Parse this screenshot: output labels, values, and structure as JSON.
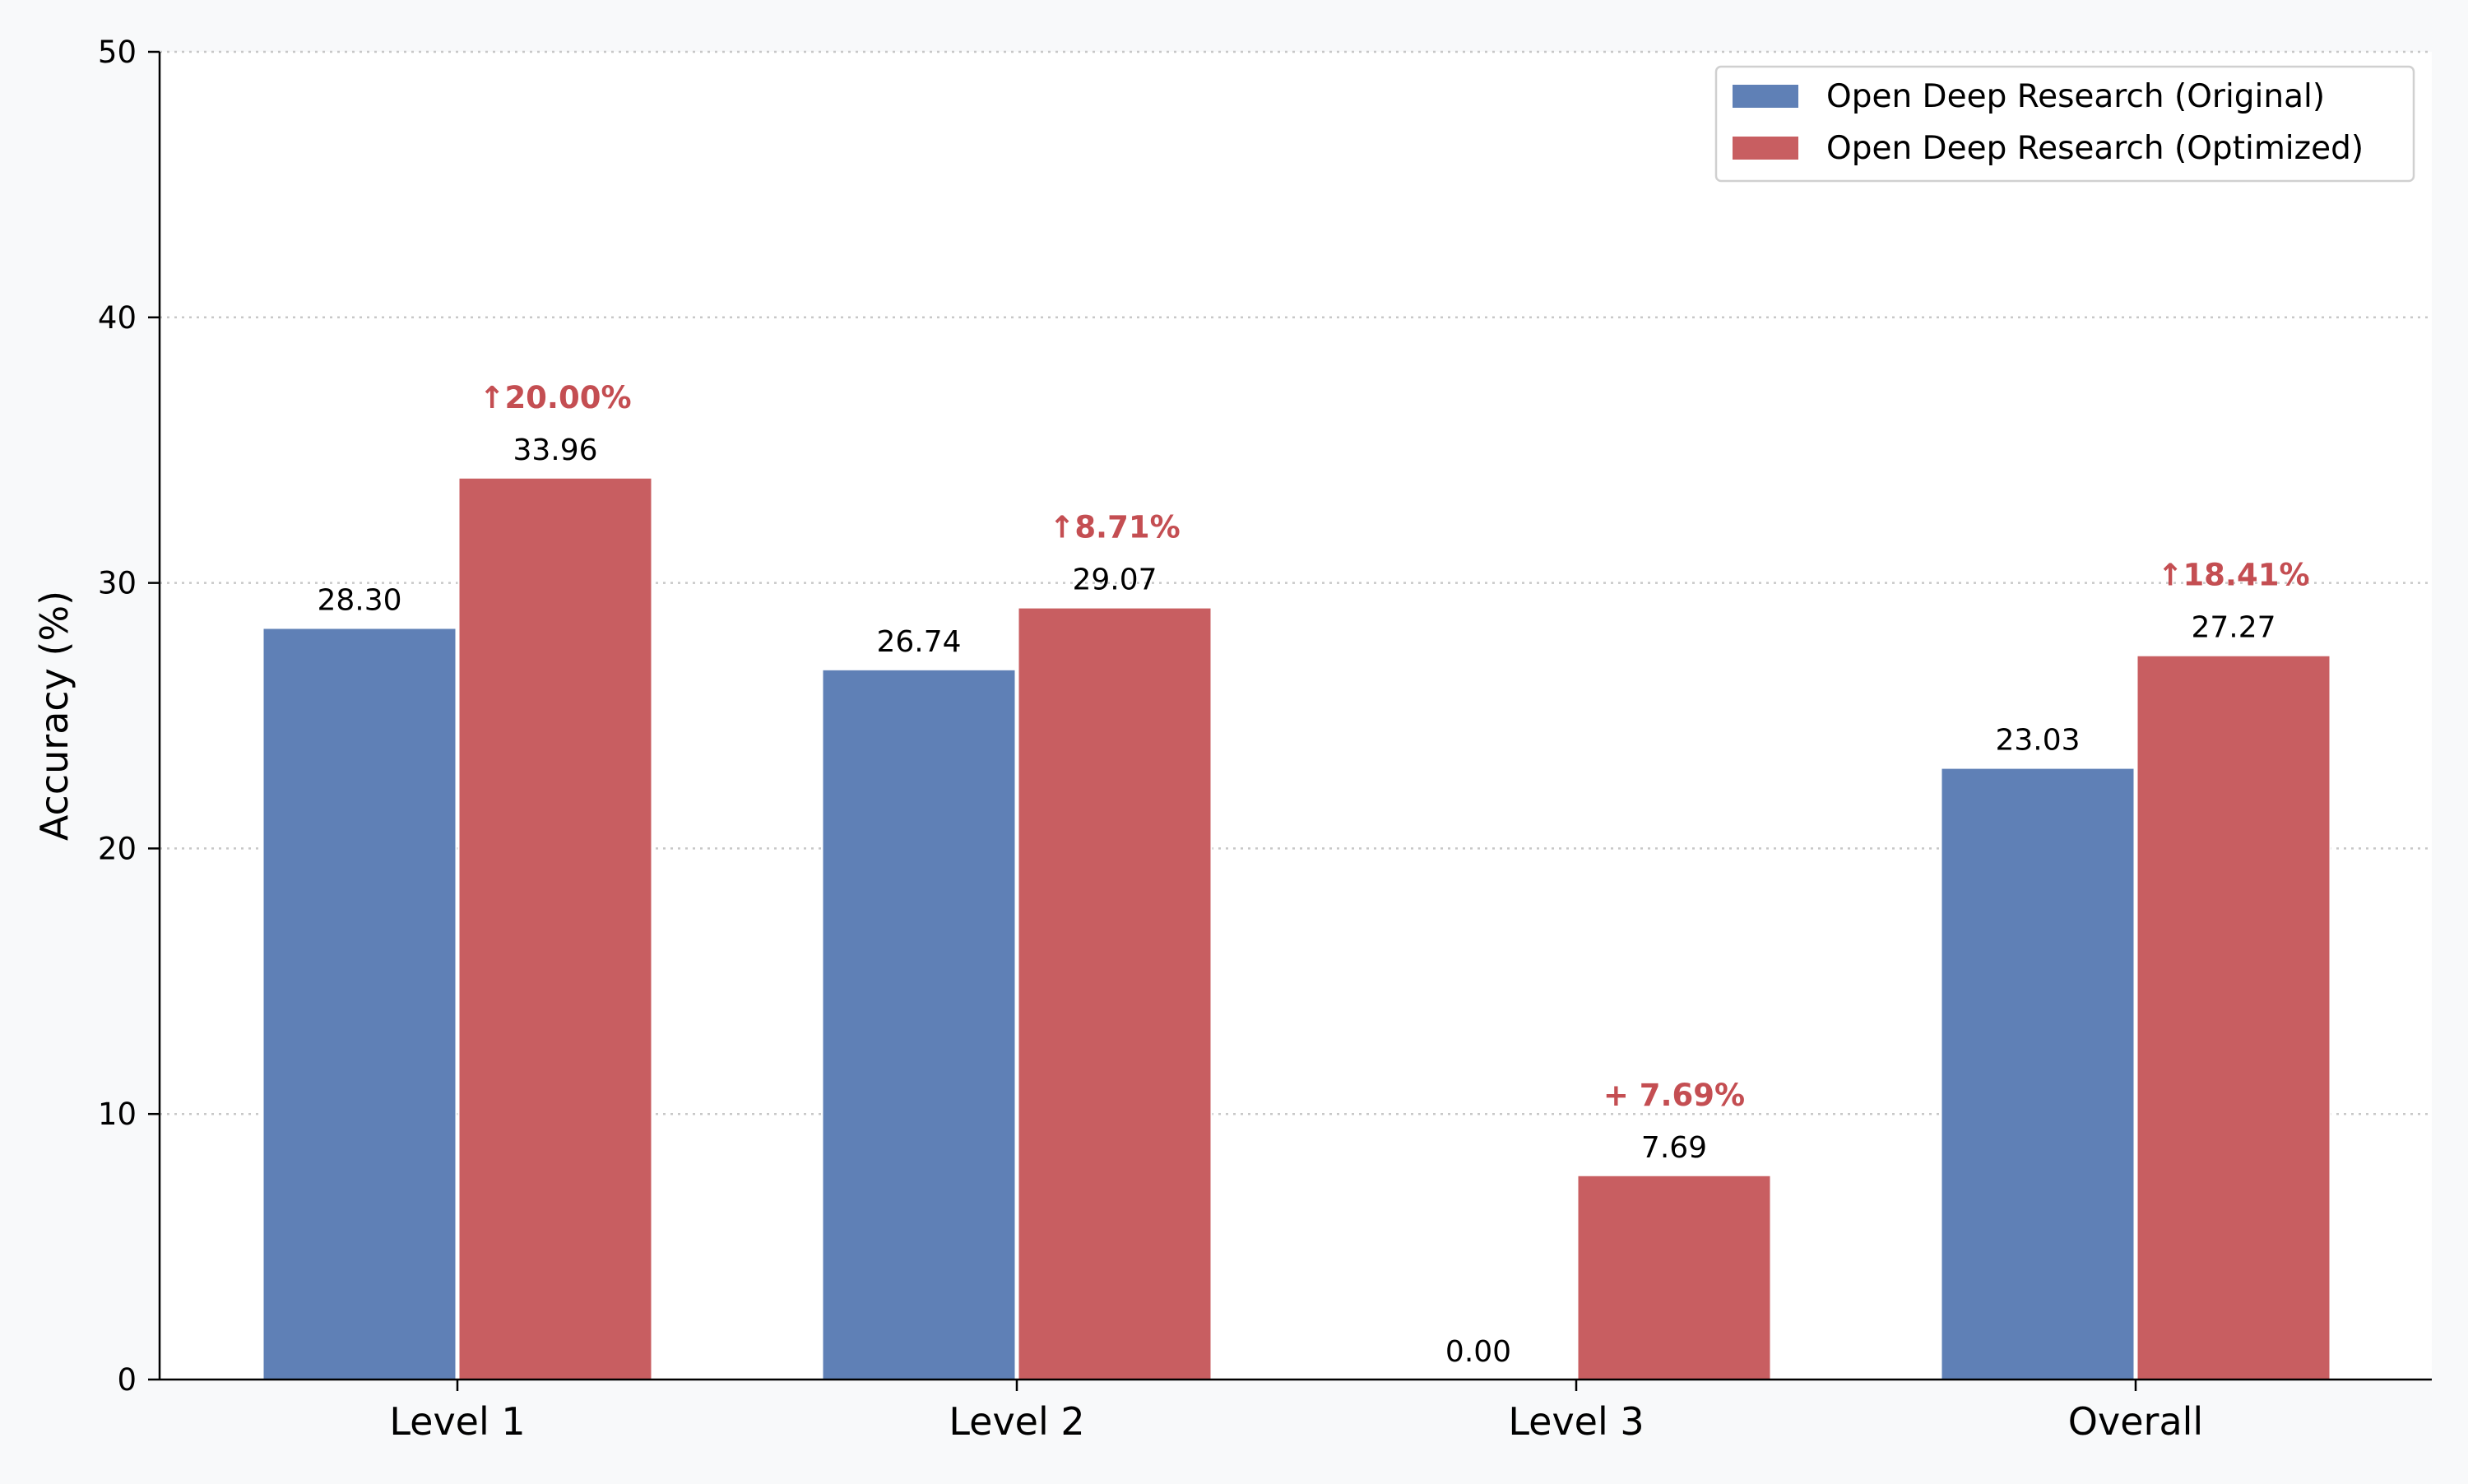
{
  "chart_data": {
    "type": "bar",
    "title": "",
    "xlabel": "",
    "ylabel": "Accuracy (%)",
    "ylim": [
      0,
      50
    ],
    "yticks": [
      0,
      10,
      20,
      30,
      40,
      50
    ],
    "grid": "y-dotted",
    "legend_position": "top-right",
    "categories": [
      "Level 1",
      "Level 2",
      "Level 3",
      "Overall"
    ],
    "series": [
      {
        "name": "Open Deep Research (Original)",
        "color": "#5f80b6",
        "values": [
          28.3,
          26.74,
          0.0,
          23.03
        ],
        "labels": [
          "28.30",
          "26.74",
          "0.00",
          "23.03"
        ]
      },
      {
        "name": "Open Deep Research (Optimized)",
        "color": "#c85e61",
        "values": [
          33.96,
          29.07,
          7.69,
          27.27
        ],
        "labels": [
          "33.96",
          "29.07",
          "7.69",
          "27.27"
        ]
      }
    ],
    "annotations": {
      "color": "#c44e52",
      "labels": [
        "↑20.00%",
        "↑8.71%",
        "+ 7.69%",
        "↑18.41%"
      ]
    }
  }
}
